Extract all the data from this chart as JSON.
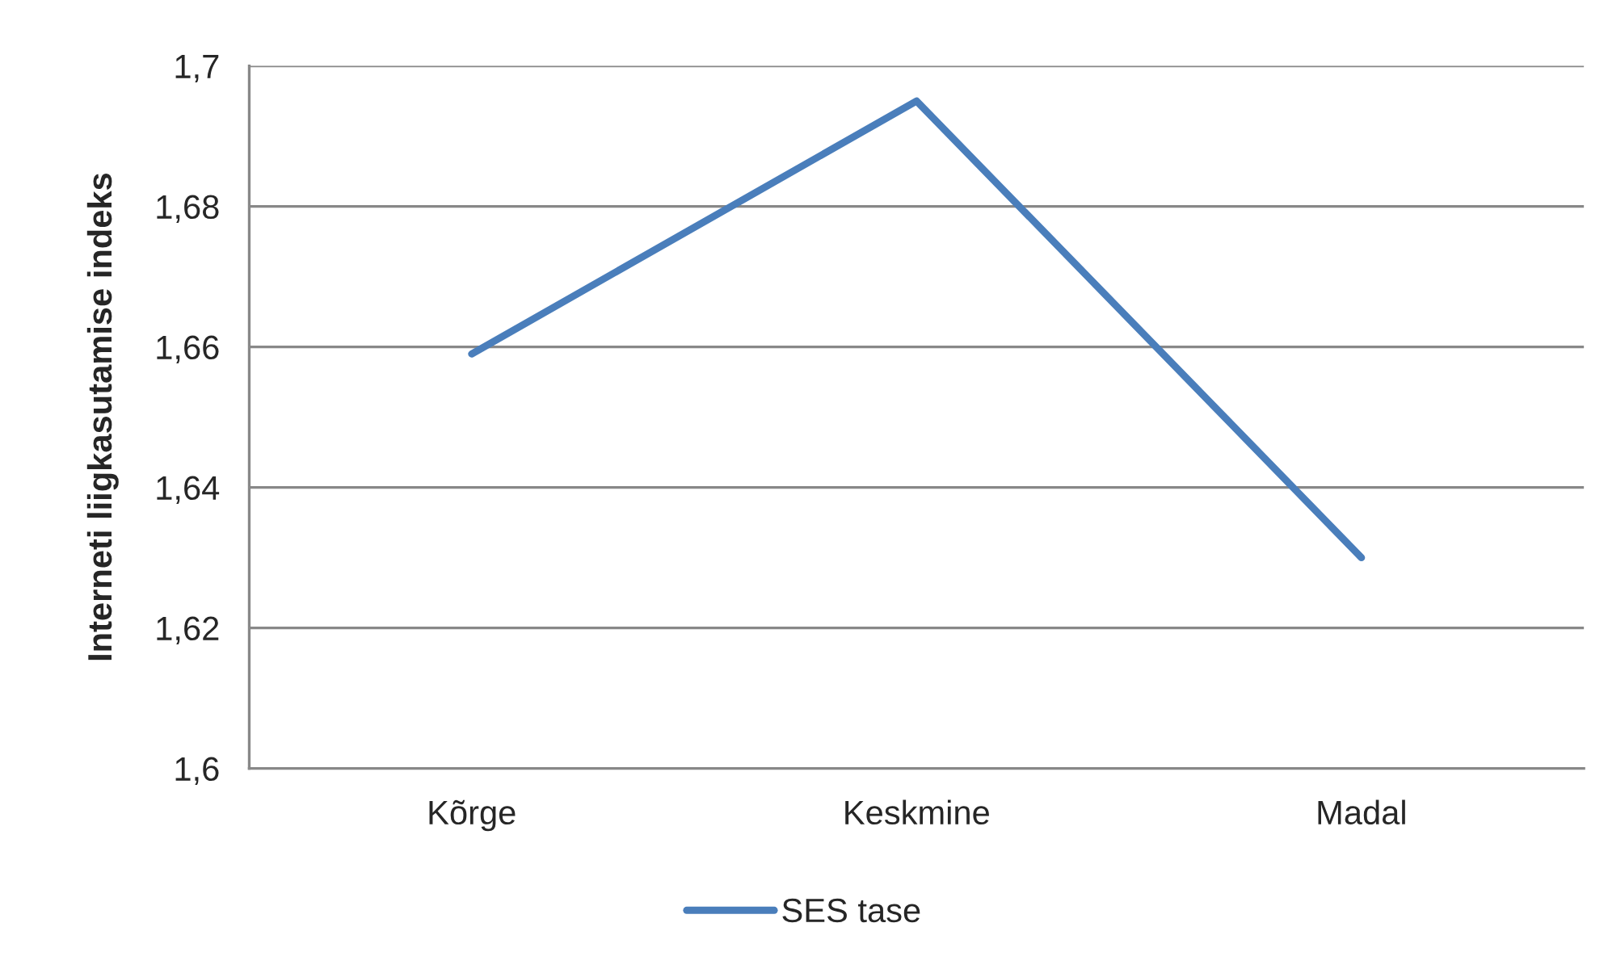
{
  "chart_data": {
    "type": "line",
    "ylabel": "Interneti liigkasutamise indeks",
    "categories": [
      "Kõrge",
      "Keskmine",
      "Madal"
    ],
    "series": [
      {
        "name": "SES tase",
        "color": "#4a7ebb",
        "values": [
          1.659,
          1.695,
          1.63
        ]
      }
    ],
    "ylim": [
      1.6,
      1.7
    ],
    "yticks": [
      {
        "value": 1.6,
        "label": "1,6"
      },
      {
        "value": 1.62,
        "label": "1,62"
      },
      {
        "value": 1.64,
        "label": "1,64"
      },
      {
        "value": 1.66,
        "label": "1,66"
      },
      {
        "value": 1.68,
        "label": "1,68"
      },
      {
        "value": 1.7,
        "label": "1,7"
      }
    ],
    "grid": "y",
    "legend": "bottom",
    "line_style": "solid"
  }
}
